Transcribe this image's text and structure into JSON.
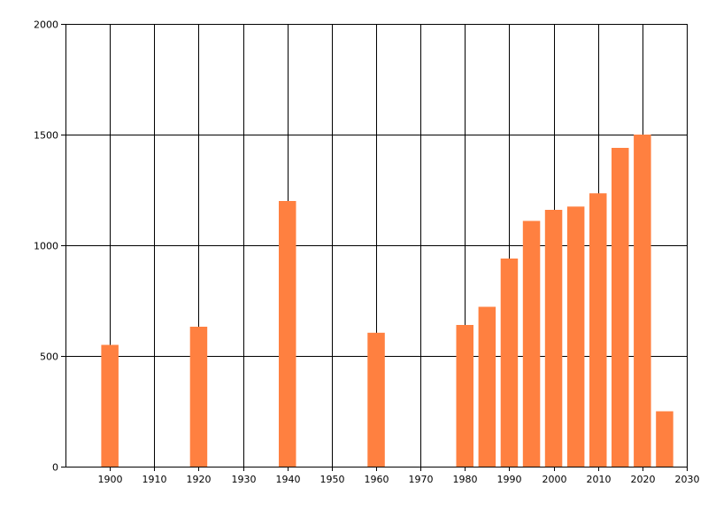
{
  "chart_data": {
    "type": "bar",
    "title": "",
    "xlabel": "",
    "ylabel": "",
    "x": [
      1900,
      1920,
      1940,
      1960,
      1980,
      1985,
      1990,
      1995,
      2000,
      2005,
      2010,
      2015,
      2020,
      2025
    ],
    "values": [
      550,
      632,
      1200,
      605,
      640,
      722,
      940,
      1110,
      1160,
      1175,
      1235,
      1440,
      1500,
      250
    ],
    "xlim": [
      1890,
      2030
    ],
    "ylim": [
      0,
      2000
    ],
    "x_ticks": [
      1900,
      1910,
      1920,
      1930,
      1940,
      1950,
      1960,
      1970,
      1980,
      1990,
      2000,
      2010,
      2020,
      2030
    ],
    "y_ticks": [
      0,
      500,
      1000,
      1500,
      2000
    ],
    "grid": true,
    "bar_color": "#ff8040",
    "grid_color": "#000000"
  }
}
